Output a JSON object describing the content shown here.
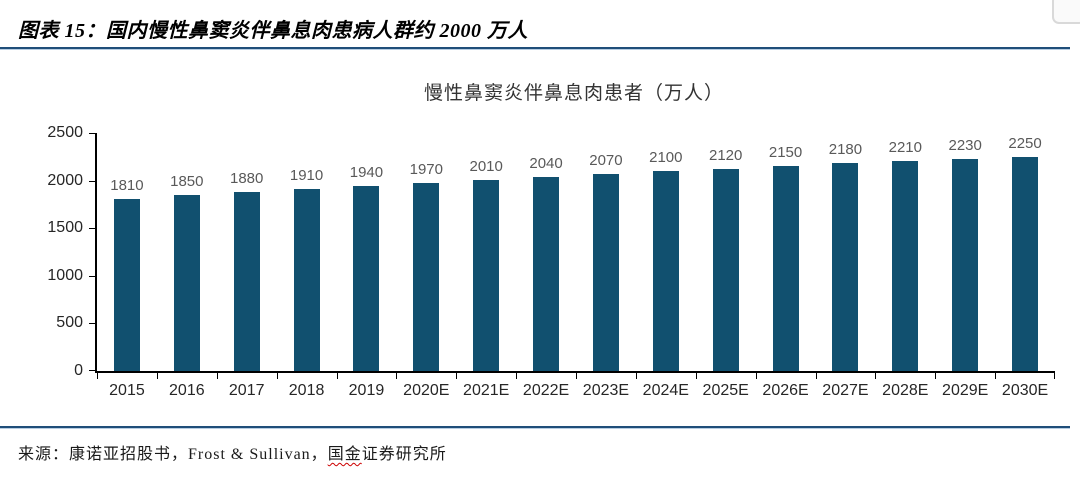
{
  "header": {
    "title": "图表 15：国内慢性鼻窦炎伴鼻息肉患病人群约 2000 万人"
  },
  "chart_data": {
    "type": "bar",
    "title": "慢性鼻窦炎伴鼻息肉患者（万人）",
    "categories": [
      "2015",
      "2016",
      "2017",
      "2018",
      "2019",
      "2020E",
      "2021E",
      "2022E",
      "2023E",
      "2024E",
      "2025E",
      "2026E",
      "2027E",
      "2028E",
      "2029E",
      "2030E"
    ],
    "values": [
      1810,
      1850,
      1880,
      1910,
      1940,
      1970,
      2010,
      2040,
      2070,
      2100,
      2120,
      2150,
      2180,
      2210,
      2230,
      2250
    ],
    "xlabel": "",
    "ylabel": "",
    "ylim": [
      0,
      2500
    ],
    "yticks": [
      0,
      500,
      1000,
      1500,
      2000,
      2500
    ],
    "grid": false,
    "legend": "none",
    "bar_color": "#11506F",
    "value_label_color": "#595959",
    "axis_label_color": "#262626"
  },
  "source": {
    "prefix": "来源：康诺亚招股书，Frost & Sullivan，",
    "flagged": "国金",
    "suffix": "证券研究所"
  },
  "colors": {
    "rule": "#1F4E79",
    "bar": "#11506F"
  }
}
